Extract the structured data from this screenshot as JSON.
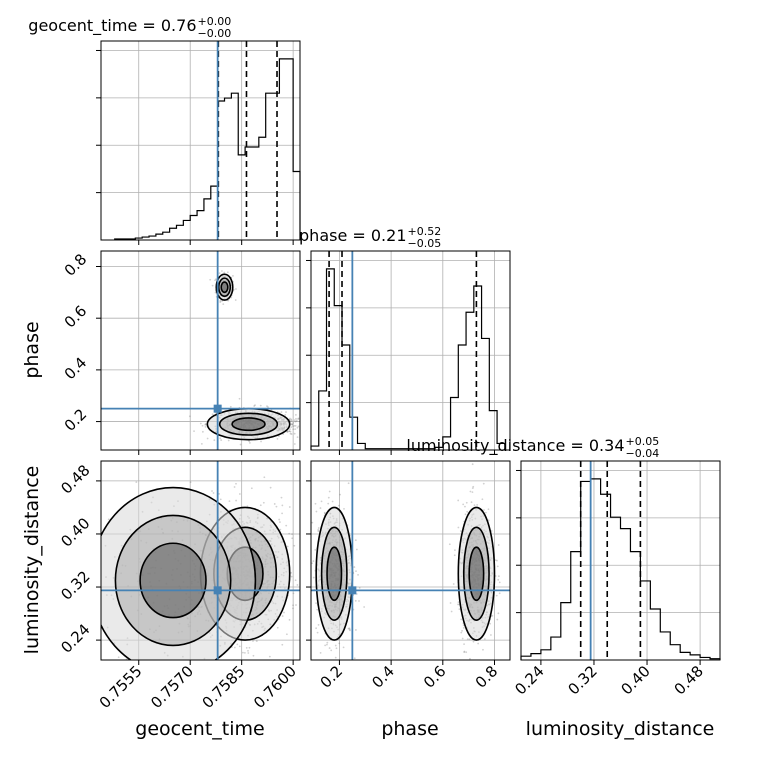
{
  "params": [
    "geocent_time",
    "phase",
    "luminosity_distance"
  ],
  "titles": [
    {
      "label": "geocent_time = 0.76",
      "sup": "+0.00",
      "sub": "−0.00"
    },
    {
      "label": "phase = 0.21",
      "sup": "+0.52",
      "sub": "−0.05"
    },
    {
      "label": "luminosity_distance = 0.34",
      "sup": "+0.05",
      "sub": "−0.04"
    }
  ],
  "axis_labels": {
    "x": [
      "geocent_time",
      "phase",
      "luminosity_distance"
    ],
    "y": [
      "phase",
      "luminosity_distance"
    ]
  },
  "chart_data": {
    "type": "corner",
    "ranges": {
      "geocent_time": [
        0.7544,
        0.7602
      ],
      "phase": [
        0.09,
        0.86
      ],
      "luminosity_distance": [
        0.21,
        0.51
      ]
    },
    "ticks": {
      "geocent_time": [
        0.7555,
        0.757,
        0.7585,
        0.76
      ],
      "geocent_time_labels": [
        "0.7555",
        "0.7570",
        "0.7585",
        "0.7600"
      ],
      "phase": [
        0.2,
        0.4,
        0.6,
        0.8
      ],
      "phase_labels": [
        "0.2",
        "0.4",
        "0.6",
        "0.8"
      ],
      "luminosity_distance": [
        0.24,
        0.32,
        0.4,
        0.48
      ],
      "luminosity_distance_labels": [
        "0.24",
        "0.32",
        "0.40",
        "0.48"
      ]
    },
    "truths": {
      "geocent_time": 0.7578,
      "phase": 0.25,
      "luminosity_distance": 0.315
    },
    "quantiles": {
      "geocent_time": [
        0.75782,
        0.75864,
        0.75953
      ],
      "phase": [
        0.16,
        0.21,
        0.73
      ],
      "luminosity_distance": [
        0.3,
        0.34,
        0.39
      ]
    },
    "histograms": {
      "geocent_time": {
        "edges": [
          0.7548,
          0.755,
          0.7552,
          0.7554,
          0.7556,
          0.7558,
          0.756,
          0.7562,
          0.7564,
          0.7566,
          0.7568,
          0.757,
          0.7572,
          0.7574,
          0.7576,
          0.7578,
          0.758,
          0.7582,
          0.7584,
          0.7586,
          0.7588,
          0.759,
          0.7592,
          0.7594,
          0.7596,
          0.7598,
          0.76,
          0.7602
        ],
        "counts": [
          1,
          1,
          1,
          2,
          3,
          4,
          6,
          8,
          12,
          15,
          20,
          25,
          30,
          42,
          55,
          142,
          145,
          150,
          87,
          95,
          95,
          105,
          150,
          150,
          185,
          185,
          70
        ]
      },
      "phase": {
        "edges": [
          0.09,
          0.12,
          0.15,
          0.18,
          0.21,
          0.24,
          0.27,
          0.3,
          0.57,
          0.6,
          0.63,
          0.66,
          0.69,
          0.72,
          0.75,
          0.78,
          0.81,
          0.84
        ],
        "counts": [
          3,
          45,
          138,
          110,
          80,
          25,
          5,
          1,
          2,
          10,
          40,
          80,
          105,
          125,
          85,
          30,
          5
        ]
      },
      "luminosity_distance": {
        "edges": [
          0.21,
          0.225,
          0.24,
          0.255,
          0.27,
          0.285,
          0.3,
          0.315,
          0.33,
          0.345,
          0.36,
          0.375,
          0.39,
          0.405,
          0.42,
          0.435,
          0.45,
          0.465,
          0.48,
          0.495,
          0.51
        ],
        "counts": [
          3,
          5,
          8,
          18,
          45,
          85,
          140,
          142,
          130,
          112,
          103,
          85,
          62,
          40,
          22,
          12,
          6,
          4,
          2,
          1
        ]
      }
    },
    "clusters": {
      "geocent_time|phase": [
        {
          "x": 0.758,
          "y": 0.72,
          "sx": 0.00012,
          "sy": 0.025,
          "n": 260
        },
        {
          "x": 0.7587,
          "y": 0.19,
          "sx": 0.0006,
          "sy": 0.03,
          "n": 380
        },
        {
          "x": 0.7596,
          "y": 0.19,
          "sx": 0.0003,
          "sy": 0.02,
          "n": 160
        }
      ],
      "geocent_time|luminosity_distance": [
        {
          "x": 0.7586,
          "y": 0.34,
          "sx": 0.00065,
          "sy": 0.05,
          "n": 800
        },
        {
          "x": 0.7565,
          "y": 0.33,
          "sx": 0.0012,
          "sy": 0.07,
          "n": 220
        }
      ],
      "phase|luminosity_distance": [
        {
          "x": 0.18,
          "y": 0.34,
          "sx": 0.035,
          "sy": 0.05,
          "n": 600
        },
        {
          "x": 0.73,
          "y": 0.34,
          "sx": 0.035,
          "sy": 0.05,
          "n": 600
        }
      ]
    }
  }
}
